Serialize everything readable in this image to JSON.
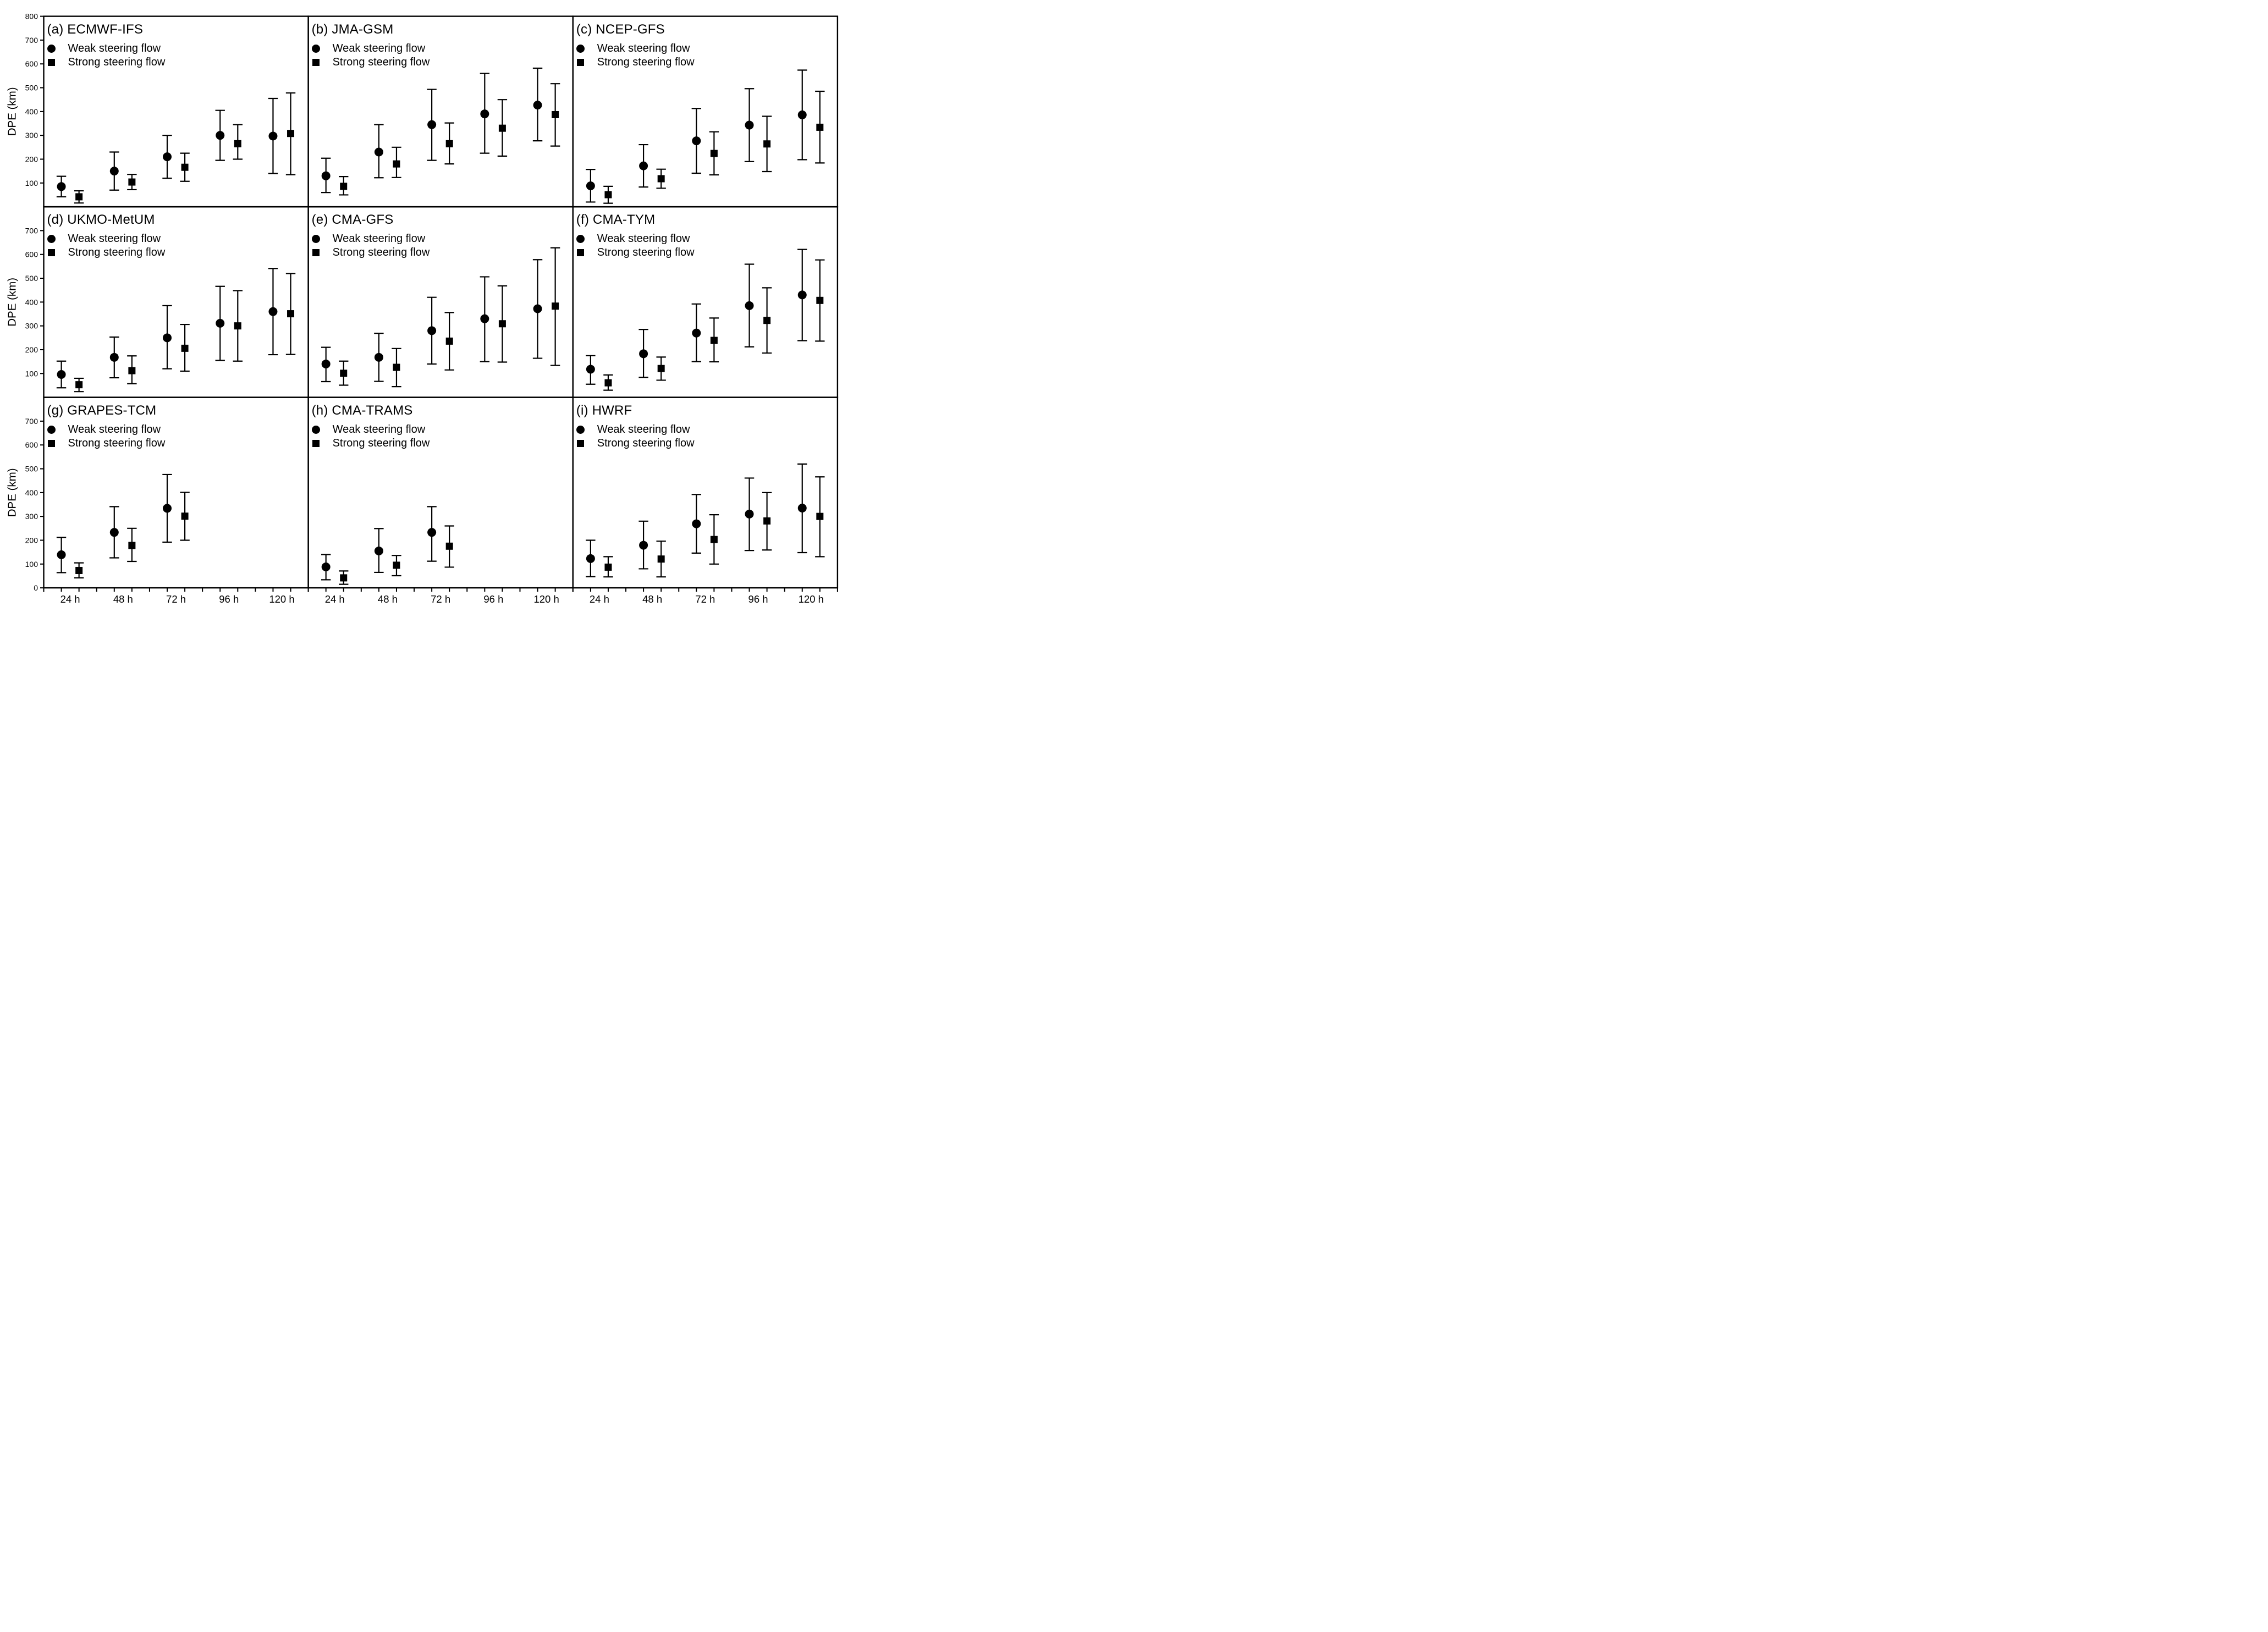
{
  "colors": {
    "ink": "#000000",
    "background": "#ffffff"
  },
  "chart_data": {
    "type": "errorbar",
    "layout": "3x3-panel-grid",
    "categories": [
      "24 h",
      "48 h",
      "72 h",
      "96 h",
      "120 h"
    ],
    "x_hours": [
      24,
      48,
      72,
      96,
      120
    ],
    "ylabel": "DPE (km)",
    "ylim": [
      0,
      800
    ],
    "grid": false,
    "legend": [
      "Weak steering flow",
      "Strong steering flow"
    ],
    "legend_markers": [
      "circle",
      "square"
    ],
    "legend_position": "top-left-inside",
    "row_yticks": [
      [
        100,
        200,
        300,
        400,
        500,
        600,
        700,
        800
      ],
      [
        100,
        200,
        300,
        400,
        500,
        600,
        700
      ],
      [
        0,
        100,
        200,
        300,
        400,
        500,
        600,
        700
      ]
    ],
    "panels": [
      {
        "id": "a",
        "title": "(a) ECMWF-IFS",
        "series": [
          {
            "name": "Weak steering flow",
            "marker": "circle",
            "mean": [
              85,
              150,
              210,
              300,
              297
            ],
            "lo": [
              42,
              70,
              120,
              195,
              140
            ],
            "hi": [
              128,
              230,
              300,
              405,
              455
            ]
          },
          {
            "name": "Strong steering flow",
            "marker": "square",
            "mean": [
              42,
              104,
              166,
              265,
              308
            ],
            "lo": [
              16,
              72,
              107,
              200,
              135
            ],
            "hi": [
              67,
              136,
              225,
              345,
              478
            ]
          }
        ]
      },
      {
        "id": "b",
        "title": "(b) JMA-GSM",
        "series": [
          {
            "name": "Weak steering flow",
            "marker": "circle",
            "mean": [
              130,
              230,
              345,
              390,
              427
            ],
            "lo": [
              60,
              122,
              195,
              225,
              277
            ],
            "hi": [
              204,
              345,
              493,
              560,
              582
            ]
          },
          {
            "name": "Strong steering flow",
            "marker": "square",
            "mean": [
              86,
              180,
              265,
              330,
              387
            ],
            "lo": [
              50,
              123,
              180,
              213,
              255
            ],
            "hi": [
              127,
              250,
              352,
              450,
              517
            ]
          }
        ]
      },
      {
        "id": "c",
        "title": "(c) NCEP-GFS",
        "series": [
          {
            "name": "Weak steering flow",
            "marker": "circle",
            "mean": [
              88,
              172,
              277,
              343,
              386
            ],
            "lo": [
              20,
              83,
              141,
              190,
              198
            ],
            "hi": [
              157,
              261,
              413,
              496,
              574
            ]
          },
          {
            "name": "Strong steering flow",
            "marker": "square",
            "mean": [
              51,
              118,
              224,
              264,
              334
            ],
            "lo": [
              15,
              78,
              134,
              148,
              184
            ],
            "hi": [
              86,
              158,
              315,
              380,
              485
            ]
          }
        ]
      },
      {
        "id": "d",
        "title": "(d) UKMO-MetUM",
        "series": [
          {
            "name": "Weak steering flow",
            "marker": "circle",
            "mean": [
              96,
              168,
              250,
              311,
              360
            ],
            "lo": [
              40,
              82,
              120,
              155,
              179
            ],
            "hi": [
              152,
              253,
              385,
              466,
              541
            ]
          },
          {
            "name": "Strong steering flow",
            "marker": "square",
            "mean": [
              53,
              112,
              206,
              300,
              351
            ],
            "lo": [
              24,
              57,
              110,
              152,
              180
            ],
            "hi": [
              80,
              174,
              306,
              448,
              520
            ]
          }
        ]
      },
      {
        "id": "e",
        "title": "(e) CMA-GFS",
        "series": [
          {
            "name": "Weak steering flow",
            "marker": "circle",
            "mean": [
              140,
              168,
              280,
              330,
              372
            ],
            "lo": [
              66,
              67,
              140,
              150,
              164
            ],
            "hi": [
              210,
              269,
              420,
              506,
              578
            ]
          },
          {
            "name": "Strong steering flow",
            "marker": "square",
            "mean": [
              101,
              126,
              236,
              309,
              383
            ],
            "lo": [
              51,
              45,
              115,
              148,
              134
            ],
            "hi": [
              152,
              205,
              356,
              468,
              628
            ]
          }
        ]
      },
      {
        "id": "f",
        "title": "(f) CMA-TYM",
        "series": [
          {
            "name": "Weak steering flow",
            "marker": "circle",
            "mean": [
              118,
              183,
              270,
              385,
              430
            ],
            "lo": [
              55,
              84,
              150,
              212,
              238
            ],
            "hi": [
              175,
              285,
              392,
              559,
              621
            ]
          },
          {
            "name": "Strong steering flow",
            "marker": "square",
            "mean": [
              61,
              121,
              239,
              323,
              407
            ],
            "lo": [
              30,
              72,
              149,
              186,
              236
            ],
            "hi": [
              94,
              169,
              333,
              460,
              577
            ]
          }
        ]
      },
      {
        "id": "g",
        "title": "(g) GRAPES-TCM",
        "series": [
          {
            "name": "Weak steering flow",
            "marker": "circle",
            "mean": [
              139,
              233,
              334
            ],
            "lo": [
              64,
              126,
              192
            ],
            "hi": [
              212,
              341,
              476
            ]
          },
          {
            "name": "Strong steering flow",
            "marker": "square",
            "mean": [
              73,
              178,
              301
            ],
            "lo": [
              42,
              111,
              200
            ],
            "hi": [
              105,
              250,
              401
            ]
          }
        ]
      },
      {
        "id": "h",
        "title": "(h) CMA-TRAMS",
        "series": [
          {
            "name": "Weak steering flow",
            "marker": "circle",
            "mean": [
              88,
              155,
              233
            ],
            "lo": [
              34,
              65,
              112
            ],
            "hi": [
              140,
              249,
              341
            ]
          },
          {
            "name": "Strong steering flow",
            "marker": "square",
            "mean": [
              42,
              95,
              175
            ],
            "lo": [
              15,
              51,
              87
            ],
            "hi": [
              71,
              136,
              260
            ]
          }
        ]
      },
      {
        "id": "i",
        "title": "(i) HWRF",
        "series": [
          {
            "name": "Weak steering flow",
            "marker": "circle",
            "mean": [
              123,
              179,
              269,
              310,
              335
            ],
            "lo": [
              47,
              80,
              146,
              157,
              148
            ],
            "hi": [
              200,
              280,
              392,
              461,
              520
            ]
          },
          {
            "name": "Strong steering flow",
            "marker": "square",
            "mean": [
              87,
              121,
              203,
              281,
              300
            ],
            "lo": [
              46,
              46,
              100,
              159,
              131
            ],
            "hi": [
              131,
              196,
              307,
              400,
              466
            ]
          }
        ]
      }
    ]
  }
}
